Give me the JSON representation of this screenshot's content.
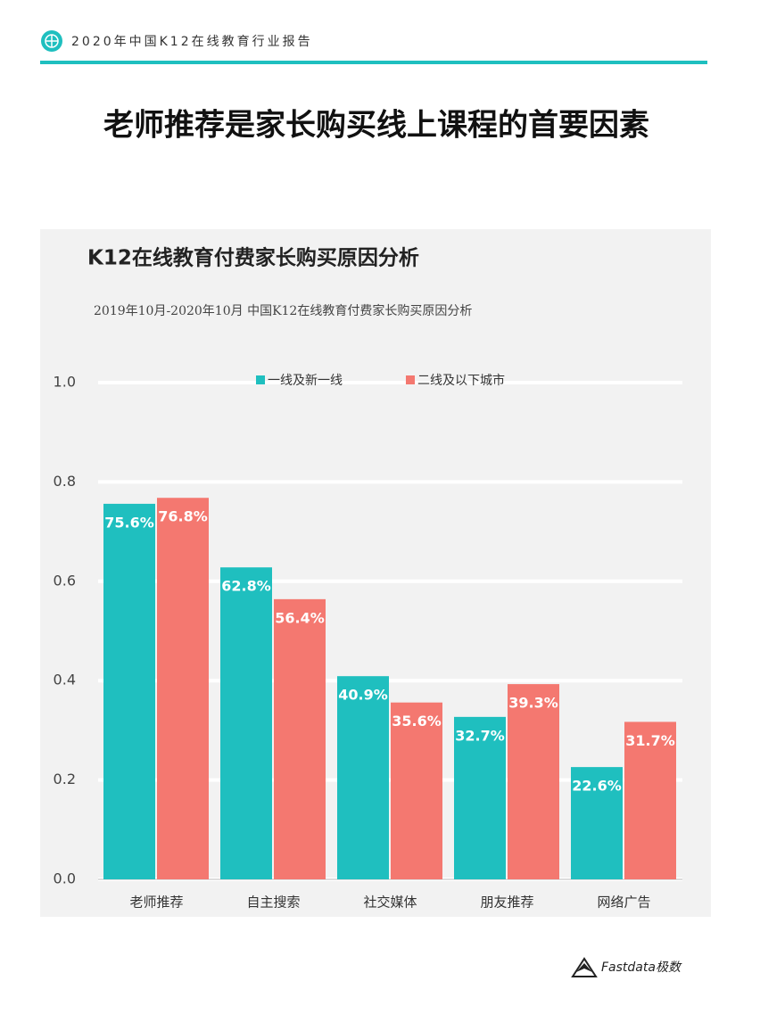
{
  "header": {
    "report": "2020年中国K12在线教育行业报告"
  },
  "headline": "老师推荐是家长购买线上课程的首要因素",
  "chart_data": {
    "type": "bar",
    "title": "K12在线教育付费家长购买原因分析",
    "subtitle": "2019年10月-2020年10月 中国K12在线教育付费家长购买原因分析",
    "categories": [
      "老师推荐",
      "自主搜索",
      "社交媒体",
      "朋友推荐",
      "网络广告"
    ],
    "series": [
      {
        "name": "一线及新一线",
        "color": "#1fbfbf",
        "values": [
          0.756,
          0.628,
          0.409,
          0.327,
          0.226
        ],
        "value_labels": [
          "75.6%",
          "62.8%",
          "40.9%",
          "32.7%",
          "22.6%"
        ]
      },
      {
        "name": "二线及以下城市",
        "color": "#f47870",
        "values": [
          0.768,
          0.564,
          0.356,
          0.393,
          0.317
        ],
        "value_labels": [
          "76.8%",
          "56.4%",
          "35.6%",
          "39.3%",
          "31.7%"
        ]
      }
    ],
    "ylim": [
      0,
      1
    ],
    "yticks": [
      {
        "value": 0,
        "label": "0.0"
      },
      0.2,
      0.4,
      0.6,
      0.8,
      {
        "value": 1,
        "label": "1.0"
      }
    ],
    "grid": true,
    "legend": "top"
  },
  "footer": {
    "brand": "Fastdata极数"
  }
}
